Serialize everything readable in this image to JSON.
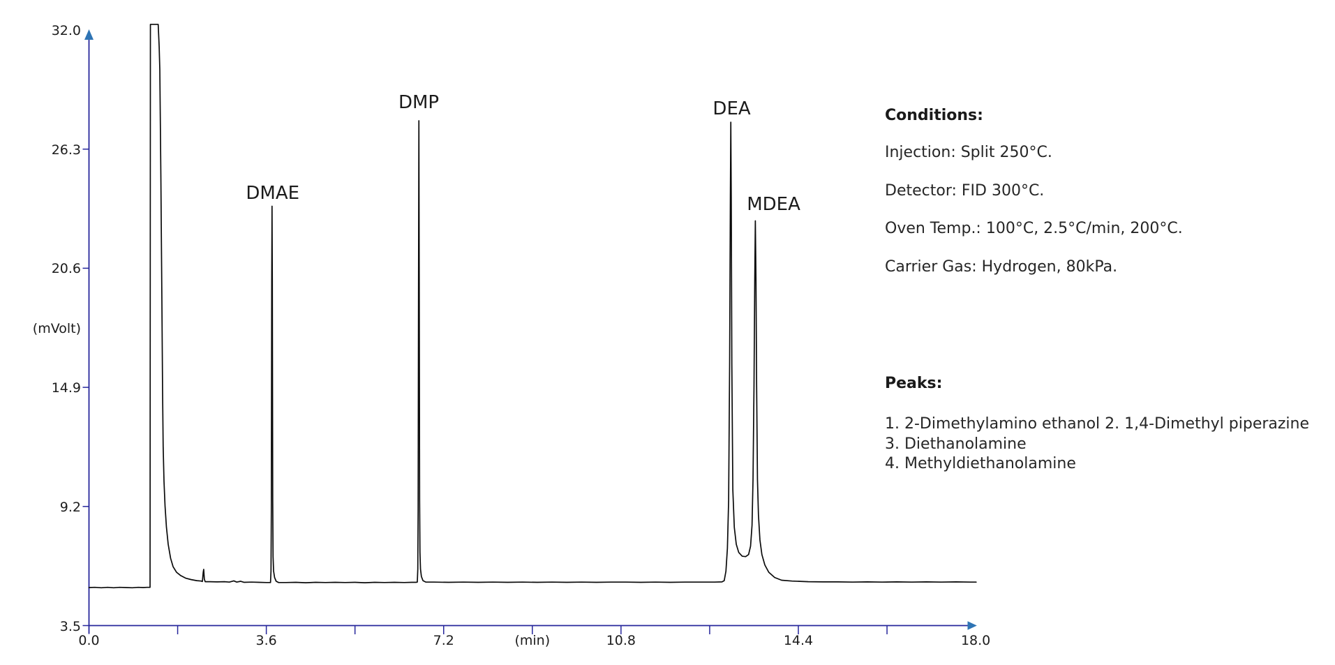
{
  "chart_data": {
    "type": "line",
    "title": "",
    "xlabel": "(min)",
    "ylabel": "(mVolt)",
    "xlim": [
      0.0,
      18.0
    ],
    "ylim": [
      3.5,
      32.0
    ],
    "grid": false,
    "x_tick_labels": [
      {
        "t": 0.0,
        "label": "0.0"
      },
      {
        "t": 3.6,
        "label": "3.6"
      },
      {
        "t": 7.2,
        "label": "7.2"
      },
      {
        "t": 10.8,
        "label": "10.8"
      },
      {
        "t": 14.4,
        "label": "14.4"
      },
      {
        "t": 18.0,
        "label": "18.0"
      }
    ],
    "x_unit_label_t": 9.0,
    "x_tick_marks": [
      1.8,
      3.6,
      5.4,
      7.2,
      9.0,
      10.8,
      12.6,
      14.4,
      16.2
    ],
    "y_tick_labels": [
      {
        "v": 3.5,
        "label": "3.5"
      },
      {
        "v": 9.2,
        "label": "9.2"
      },
      {
        "v": 14.9,
        "label": "14.9"
      },
      {
        "v": 20.6,
        "label": "20.6"
      },
      {
        "v": 26.3,
        "label": "26.3"
      },
      {
        "v": 32.0,
        "label": "32.0"
      }
    ],
    "y_unit_label_v": 17.75,
    "y_tick_marks": [
      3.5,
      9.2,
      14.9,
      20.6,
      26.3
    ],
    "peaks": [
      {
        "number": 1,
        "label": "DMAE",
        "retention_min": 3.72,
        "apex_mv": 23.6,
        "label_t": 3.729,
        "label_mv": 24.19
      },
      {
        "number": 2,
        "label": "DMP",
        "retention_min": 6.7,
        "apex_mv": 27.7,
        "label_t": 6.694,
        "label_mv": 28.52
      },
      {
        "number": 3,
        "label": "DEA",
        "retention_min": 13.03,
        "apex_mv": 27.6,
        "label_t": 13.048,
        "label_mv": 28.24
      },
      {
        "number": 4,
        "label": "MDEA",
        "retention_min": 13.53,
        "apex_mv": 22.9,
        "label_t": 13.898,
        "label_mv": 23.64
      }
    ],
    "trace": [
      [
        0.0,
        5.32
      ],
      [
        0.12,
        5.33
      ],
      [
        0.25,
        5.31
      ],
      [
        0.38,
        5.33
      ],
      [
        0.5,
        5.31
      ],
      [
        0.62,
        5.33
      ],
      [
        0.75,
        5.32
      ],
      [
        0.88,
        5.31
      ],
      [
        1.0,
        5.33
      ],
      [
        1.1,
        5.32
      ],
      [
        1.18,
        5.33
      ],
      [
        1.24,
        5.33
      ],
      [
        1.247,
        32.27
      ],
      [
        1.3,
        32.27
      ],
      [
        1.35,
        32.27
      ],
      [
        1.405,
        32.27
      ],
      [
        1.425,
        31.2
      ],
      [
        1.438,
        30.1
      ],
      [
        1.459,
        25.09
      ],
      [
        1.48,
        19.08
      ],
      [
        1.494,
        14.74
      ],
      [
        1.506,
        12.07
      ],
      [
        1.523,
        10.4
      ],
      [
        1.544,
        9.23
      ],
      [
        1.572,
        8.22
      ],
      [
        1.608,
        7.39
      ],
      [
        1.657,
        6.72
      ],
      [
        1.707,
        6.32
      ],
      [
        1.778,
        6.05
      ],
      [
        1.863,
        5.89
      ],
      [
        1.962,
        5.77
      ],
      [
        2.075,
        5.7
      ],
      [
        2.188,
        5.65
      ],
      [
        2.28,
        5.63
      ],
      [
        2.302,
        5.61
      ],
      [
        2.319,
        6.05
      ],
      [
        2.329,
        6.19
      ],
      [
        2.342,
        5.72
      ],
      [
        2.359,
        5.6
      ],
      [
        2.45,
        5.6
      ],
      [
        2.6,
        5.59
      ],
      [
        2.75,
        5.6
      ],
      [
        2.85,
        5.58
      ],
      [
        2.94,
        5.64
      ],
      [
        3.0,
        5.58
      ],
      [
        3.08,
        5.62
      ],
      [
        3.15,
        5.57
      ],
      [
        3.3,
        5.58
      ],
      [
        3.45,
        5.57
      ],
      [
        3.6,
        5.56
      ],
      [
        3.66,
        5.56
      ],
      [
        3.685,
        5.56
      ],
      [
        3.695,
        6.1
      ],
      [
        3.702,
        9.0
      ],
      [
        3.71,
        20.0
      ],
      [
        3.716,
        23.57
      ],
      [
        3.722,
        20.0
      ],
      [
        3.73,
        9.5
      ],
      [
        3.737,
        6.8
      ],
      [
        3.748,
        6.1
      ],
      [
        3.768,
        5.8
      ],
      [
        3.8,
        5.62
      ],
      [
        3.85,
        5.56
      ],
      [
        4.0,
        5.56
      ],
      [
        4.2,
        5.57
      ],
      [
        4.4,
        5.55
      ],
      [
        4.6,
        5.57
      ],
      [
        4.8,
        5.56
      ],
      [
        5.0,
        5.57
      ],
      [
        5.2,
        5.56
      ],
      [
        5.4,
        5.57
      ],
      [
        5.6,
        5.55
      ],
      [
        5.8,
        5.57
      ],
      [
        6.0,
        5.56
      ],
      [
        6.2,
        5.57
      ],
      [
        6.4,
        5.56
      ],
      [
        6.55,
        5.57
      ],
      [
        6.64,
        5.57
      ],
      [
        6.665,
        5.58
      ],
      [
        6.675,
        6.2
      ],
      [
        6.682,
        9.0
      ],
      [
        6.69,
        20.0
      ],
      [
        6.697,
        27.66
      ],
      [
        6.704,
        20.0
      ],
      [
        6.712,
        9.5
      ],
      [
        6.719,
        7.0
      ],
      [
        6.73,
        6.2
      ],
      [
        6.748,
        5.85
      ],
      [
        6.78,
        5.65
      ],
      [
        6.84,
        5.58
      ],
      [
        7.0,
        5.58
      ],
      [
        7.3,
        5.57
      ],
      [
        7.6,
        5.58
      ],
      [
        7.9,
        5.57
      ],
      [
        8.2,
        5.58
      ],
      [
        8.5,
        5.57
      ],
      [
        8.8,
        5.58
      ],
      [
        9.1,
        5.57
      ],
      [
        9.4,
        5.58
      ],
      [
        9.7,
        5.57
      ],
      [
        10.0,
        5.58
      ],
      [
        10.3,
        5.57
      ],
      [
        10.6,
        5.58
      ],
      [
        10.9,
        5.58
      ],
      [
        11.2,
        5.57
      ],
      [
        11.5,
        5.58
      ],
      [
        11.8,
        5.57
      ],
      [
        12.1,
        5.58
      ],
      [
        12.4,
        5.58
      ],
      [
        12.7,
        5.58
      ],
      [
        12.85,
        5.59
      ],
      [
        12.895,
        5.65
      ],
      [
        12.93,
        6.1
      ],
      [
        12.96,
        7.2
      ],
      [
        12.985,
        9.5
      ],
      [
        13.005,
        16.0
      ],
      [
        13.02,
        24.0
      ],
      [
        13.029,
        27.59
      ],
      [
        13.038,
        24.0
      ],
      [
        13.05,
        16.0
      ],
      [
        13.07,
        10.0
      ],
      [
        13.1,
        8.2
      ],
      [
        13.14,
        7.39
      ],
      [
        13.19,
        7.0
      ],
      [
        13.26,
        6.82
      ],
      [
        13.33,
        6.8
      ],
      [
        13.39,
        6.9
      ],
      [
        13.43,
        7.3
      ],
      [
        13.46,
        8.3
      ],
      [
        13.48,
        10.5
      ],
      [
        13.5,
        15.0
      ],
      [
        13.515,
        20.0
      ],
      [
        13.527,
        22.87
      ],
      [
        13.54,
        20.0
      ],
      [
        13.553,
        15.0
      ],
      [
        13.57,
        10.5
      ],
      [
        13.59,
        8.8
      ],
      [
        13.62,
        7.6
      ],
      [
        13.66,
        6.9
      ],
      [
        13.72,
        6.4
      ],
      [
        13.8,
        6.05
      ],
      [
        13.92,
        5.8
      ],
      [
        14.06,
        5.67
      ],
      [
        14.27,
        5.63
      ],
      [
        14.6,
        5.6
      ],
      [
        14.9,
        5.59
      ],
      [
        15.2,
        5.59
      ],
      [
        15.5,
        5.58
      ],
      [
        15.8,
        5.59
      ],
      [
        16.1,
        5.58
      ],
      [
        16.4,
        5.59
      ],
      [
        16.7,
        5.58
      ],
      [
        17.0,
        5.59
      ],
      [
        17.3,
        5.58
      ],
      [
        17.6,
        5.59
      ],
      [
        17.9,
        5.58
      ],
      [
        18.01,
        5.58
      ]
    ]
  },
  "right_panel": {
    "conditions": {
      "heading": "Conditions:",
      "lines": [
        "Injection: Split 250°C.",
        "Detector: FID 300°C.",
        "Oven Temp.: 100°C, 2.5°C/min, 200°C.",
        "Carrier Gas: Hydrogen, 80kPa."
      ]
    },
    "peaks": {
      "heading": "Peaks:",
      "lines": [
        "1. 2-Dimethylamino ethanol 2. 1,4-Dimethyl piperazine",
        "3. Diethanolamine",
        "4. Methyldiethanolamine"
      ]
    }
  },
  "colors": {
    "axis": "#26269B",
    "arrow": "#2E74B4",
    "trace": "#0A0A0A",
    "text": "#1C1C1C"
  }
}
